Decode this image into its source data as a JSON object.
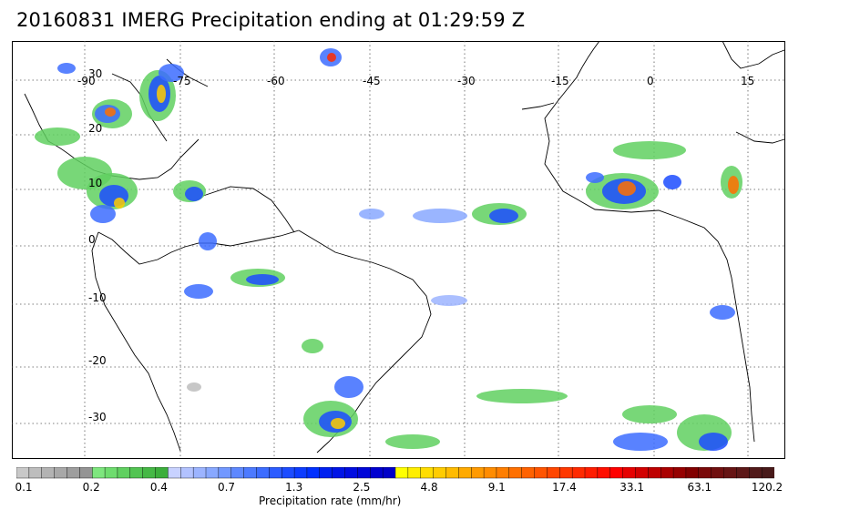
{
  "title": "20160831 IMERG Precipitation ending at 01:29:59 Z",
  "longitude_labels": [
    "-90",
    "-75",
    "-60",
    "-45",
    "-30",
    "-15",
    "0",
    "15"
  ],
  "latitude_labels": [
    "30",
    "20",
    "10",
    "0",
    "-10",
    "-20",
    "-30"
  ],
  "colorbar": {
    "title": "Precipitation rate (mm/hr)",
    "tick_labels": [
      "0.1",
      "0.2",
      "0.4",
      "0.7",
      "1.3",
      "2.5",
      "4.8",
      "9.1",
      "17.4",
      "33.1",
      "63.1",
      "120.2"
    ],
    "colors": [
      "#c8c8c8",
      "#bdbdbd",
      "#b3b3b3",
      "#a8a8a8",
      "#9e9e9e",
      "#949494",
      "#7ee67e",
      "#6edc6e",
      "#60d060",
      "#52c452",
      "#46b846",
      "#3cae3c",
      "#c8d2ff",
      "#b2c2ff",
      "#9cb4ff",
      "#88a8ff",
      "#7298ff",
      "#5e88ff",
      "#4c7aff",
      "#3c6cff",
      "#2c5cff",
      "#1c4cff",
      "#0c3cff",
      "#0030ff",
      "#0020f0",
      "#0014e6",
      "#000ce0",
      "#0006d8",
      "#0000d0",
      "#0000c8",
      "#ffff00",
      "#ffee00",
      "#ffdd00",
      "#ffcc00",
      "#ffbb00",
      "#ffaa00",
      "#ff9a00",
      "#ff8c00",
      "#ff7e00",
      "#ff7000",
      "#ff6200",
      "#ff5400",
      "#ff4600",
      "#ff3800",
      "#ff2a00",
      "#ff1c00",
      "#ff0e00",
      "#ff0000",
      "#e60000",
      "#d20000",
      "#be0000",
      "#aa0000",
      "#960000",
      "#820000",
      "#7a0a0a",
      "#701010",
      "#661414",
      "#5c1818",
      "#521a1a",
      "#481a1a"
    ]
  }
}
